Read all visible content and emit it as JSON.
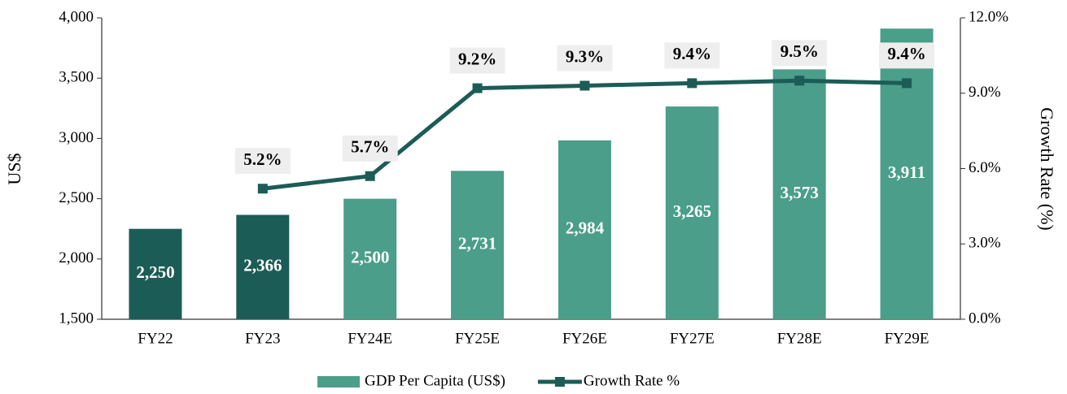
{
  "chart_data": {
    "type": "bar-line",
    "categories": [
      "FY22",
      "FY23",
      "FY24E",
      "FY25E",
      "FY26E",
      "FY27E",
      "FY28E",
      "FY29E"
    ],
    "series": [
      {
        "name": "GDP Per Capita (US$)",
        "type": "bar",
        "color": "#4a9e8a",
        "colors": [
          "#1c5c56",
          "#1c5c56",
          "#4a9e8a",
          "#4a9e8a",
          "#4a9e8a",
          "#4a9e8a",
          "#4a9e8a",
          "#4a9e8a"
        ],
        "values": [
          2250,
          2366,
          2500,
          2731,
          2984,
          3265,
          3573,
          3911
        ],
        "value_labels": [
          "2,250",
          "2,366",
          "2,500",
          "2,731",
          "2,984",
          "3,265",
          "3,573",
          "3,911"
        ]
      },
      {
        "name": "Growth Rate %",
        "type": "line",
        "axis": "y2",
        "color": "#1c5c56",
        "values": [
          null,
          5.2,
          5.7,
          9.2,
          9.3,
          9.4,
          9.5,
          9.4
        ],
        "value_labels": [
          null,
          "5.2%",
          "5.7%",
          "9.2%",
          "9.3%",
          "9.4%",
          "9.5%",
          "9.4%"
        ]
      }
    ],
    "ylabel": "US$",
    "y2label": "Growth Rate (%)",
    "ylim": [
      1500,
      4000
    ],
    "yticks": [
      {
        "value": 1500,
        "label": "1,500"
      },
      {
        "value": 2000,
        "label": "2,000"
      },
      {
        "value": 2500,
        "label": "2,500"
      },
      {
        "value": 3000,
        "label": "3,000"
      },
      {
        "value": 3500,
        "label": "3,500"
      },
      {
        "value": 4000,
        "label": "4,000"
      }
    ],
    "y2lim": [
      0,
      12
    ],
    "y2ticks": [
      {
        "value": 0,
        "label": "0.0%"
      },
      {
        "value": 3,
        "label": "3.0%"
      },
      {
        "value": 6,
        "label": "6.0%"
      },
      {
        "value": 9,
        "label": "9.0%"
      },
      {
        "value": 12,
        "label": "12.0%"
      }
    ],
    "legend": "bottom"
  }
}
